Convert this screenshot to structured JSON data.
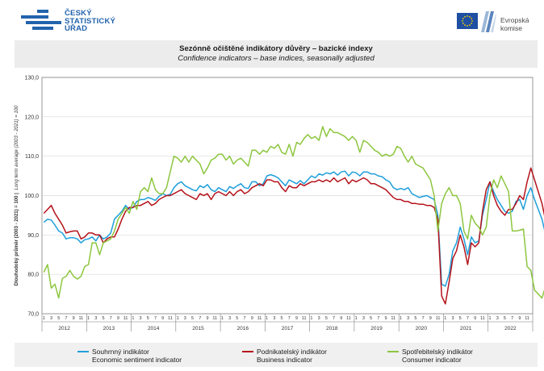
{
  "header": {
    "czso_logo_lines": [
      "ČESKÝ",
      "STATISTICKÝ",
      "ÚŘAD"
    ],
    "eu_logo_lines": [
      "Evropská",
      "komise"
    ]
  },
  "titles": {
    "cz": "Sezónně očištěné indikátory důvěry – bazické indexy",
    "en": "Confidence indicators – base indices, seasonally adjusted"
  },
  "colors": {
    "economic": "#1e9fdb",
    "business": "#b5121b",
    "consumer": "#8dc63f",
    "grid": "#d9d9d9",
    "axis": "#7f7f7f"
  },
  "chart_data": {
    "type": "line",
    "ylabel_cz": "Dlouhodobý průměr (2003 - 2021) = 100 |",
    "ylabel_en": "Long term average (2003 - 2021) = 100",
    "ylim": [
      70,
      130
    ],
    "yticks": [
      "70,0",
      "80,0",
      "90,0",
      "100,0",
      "110,0",
      "120,0",
      "130,0"
    ],
    "grid": true,
    "legend_position": "bottom",
    "x_start": "2012-01",
    "month_ticks": [
      "1",
      "3",
      "5",
      "7",
      "9",
      "11"
    ],
    "years": [
      "2012",
      "2013",
      "2014",
      "2015",
      "2016",
      "2017",
      "2018",
      "2019",
      "2020",
      "2021",
      "2022"
    ],
    "series": [
      {
        "key": "economic",
        "name_cz": "Souhrnný indikátor",
        "name_en": "Economic sentiment indicator",
        "values": [
          93.2,
          94.0,
          93.8,
          92.5,
          91.0,
          90.5,
          89.0,
          89.3,
          89.3,
          89.0,
          88.0,
          88.8,
          89.0,
          89.5,
          88.5,
          90.0,
          89.0,
          89.5,
          90.5,
          94.0,
          95.0,
          96.0,
          97.5,
          96.5,
          97.0,
          98.5,
          99.0,
          99.0,
          99.5,
          99.2,
          98.8,
          99.8,
          100.5,
          100.0,
          100.3,
          102.0,
          103.0,
          103.5,
          102.5,
          102.0,
          101.5,
          101.2,
          102.5,
          102.0,
          102.8,
          101.5,
          101.0,
          102.0,
          101.5,
          101.0,
          102.3,
          101.8,
          102.5,
          103.0,
          102.0,
          101.8,
          103.5,
          103.5,
          102.5,
          103.0,
          105.0,
          105.3,
          105.0,
          104.5,
          103.5,
          102.5,
          104.0,
          103.5,
          103.0,
          103.8,
          103.0,
          104.0,
          105.0,
          104.5,
          105.5,
          105.2,
          105.8,
          105.5,
          106.0,
          105.2,
          106.0,
          106.2,
          105.0,
          106.0,
          105.8,
          105.0,
          106.0,
          106.0,
          105.5,
          105.5,
          105.0,
          104.8,
          104.0,
          103.5,
          102.0,
          101.5,
          101.8,
          101.5,
          102.0,
          100.5,
          100.0,
          99.5,
          99.8,
          100.0,
          99.5,
          99.0,
          95.0,
          77.5,
          77.0,
          80.0,
          86.0,
          88.0,
          92.0,
          89.0,
          85.0,
          89.5,
          88.0,
          88.5,
          95.0,
          99.0,
          103.5,
          101.0,
          99.0,
          97.5,
          96.0,
          95.5,
          96.0,
          98.5,
          99.0,
          96.5,
          100.0,
          102.0,
          99.0,
          96.5,
          94.0,
          90.0,
          90.0
        ]
      },
      {
        "key": "business",
        "name_cz": "Podnikatelský indikátor",
        "name_en": "Business indicator",
        "values": [
          95.5,
          96.5,
          97.5,
          95.5,
          94.0,
          92.5,
          90.5,
          90.8,
          91.0,
          91.0,
          89.0,
          89.5,
          90.5,
          90.5,
          90.0,
          90.0,
          88.0,
          89.0,
          89.5,
          89.5,
          91.5,
          94.0,
          96.0,
          97.0,
          97.0,
          97.5,
          97.5,
          98.0,
          98.5,
          97.5,
          98.0,
          99.0,
          99.5,
          100.0,
          100.0,
          100.5,
          101.0,
          101.5,
          100.5,
          100.0,
          99.5,
          99.0,
          100.5,
          100.0,
          100.5,
          99.0,
          100.5,
          101.0,
          100.5,
          100.0,
          101.0,
          100.0,
          101.0,
          101.5,
          100.5,
          101.0,
          102.0,
          102.5,
          103.0,
          102.5,
          104.0,
          104.0,
          103.5,
          103.5,
          102.0,
          101.0,
          102.5,
          102.0,
          102.0,
          103.0,
          102.5,
          103.0,
          103.5,
          103.5,
          104.0,
          103.5,
          104.0,
          103.5,
          104.5,
          103.5,
          104.0,
          104.5,
          103.0,
          104.0,
          103.5,
          104.0,
          104.5,
          104.0,
          103.0,
          103.0,
          102.5,
          102.0,
          101.5,
          100.5,
          99.5,
          99.0,
          99.0,
          98.5,
          98.5,
          98.0,
          98.0,
          97.8,
          97.8,
          97.5,
          97.5,
          97.0,
          94.0,
          74.5,
          72.5,
          78.0,
          84.0,
          86.0,
          90.0,
          87.0,
          82.5,
          88.0,
          87.0,
          88.0,
          96.0,
          101.5,
          103.5,
          100.0,
          97.5,
          96.0,
          95.0,
          96.5,
          96.5,
          98.0,
          100.0,
          99.0,
          103.5,
          107.0,
          104.0,
          101.0,
          98.0,
          93.5,
          93.3
        ]
      },
      {
        "key": "consumer",
        "name_cz": "Spotřebitelský indikátor",
        "name_en": "Consumer indicator",
        "values": [
          80.5,
          82.5,
          76.5,
          77.5,
          74.0,
          79.0,
          79.5,
          81.0,
          79.5,
          78.8,
          79.5,
          82.0,
          82.5,
          88.0,
          88.0,
          85.0,
          88.0,
          88.5,
          89.0,
          91.0,
          94.0,
          95.5,
          97.0,
          95.5,
          98.5,
          96.5,
          101.0,
          102.0,
          101.0,
          104.5,
          101.5,
          100.5,
          100.5,
          102.0,
          106.0,
          110.0,
          109.5,
          108.5,
          110.0,
          108.5,
          110.0,
          109.0,
          108.0,
          105.5,
          107.0,
          109.0,
          109.5,
          110.5,
          110.5,
          109.0,
          110.0,
          108.0,
          109.0,
          109.5,
          108.5,
          107.5,
          111.5,
          111.5,
          110.5,
          111.5,
          111.0,
          112.5,
          112.0,
          113.0,
          111.0,
          110.5,
          113.0,
          110.0,
          113.5,
          113.0,
          114.5,
          115.5,
          114.5,
          115.0,
          114.0,
          117.5,
          115.0,
          117.0,
          116.0,
          116.0,
          115.5,
          115.0,
          114.0,
          115.0,
          114.0,
          111.0,
          114.0,
          113.5,
          112.5,
          111.5,
          111.0,
          110.0,
          110.5,
          110.0,
          110.5,
          112.5,
          112.0,
          110.0,
          108.5,
          110.0,
          108.0,
          107.5,
          107.0,
          105.5,
          104.0,
          100.0,
          91.0,
          98.0,
          100.5,
          102.0,
          100.0,
          100.0,
          98.0,
          91.0,
          89.0,
          95.0,
          93.0,
          92.0,
          90.0,
          92.0,
          100.0,
          104.0,
          102.0,
          105.0,
          103.0,
          101.0,
          91.0,
          91.0,
          91.2,
          91.5,
          82.0,
          81.0,
          76.0,
          75.0,
          74.0,
          77.0,
          73.0,
          72.5
        ]
      }
    ]
  }
}
